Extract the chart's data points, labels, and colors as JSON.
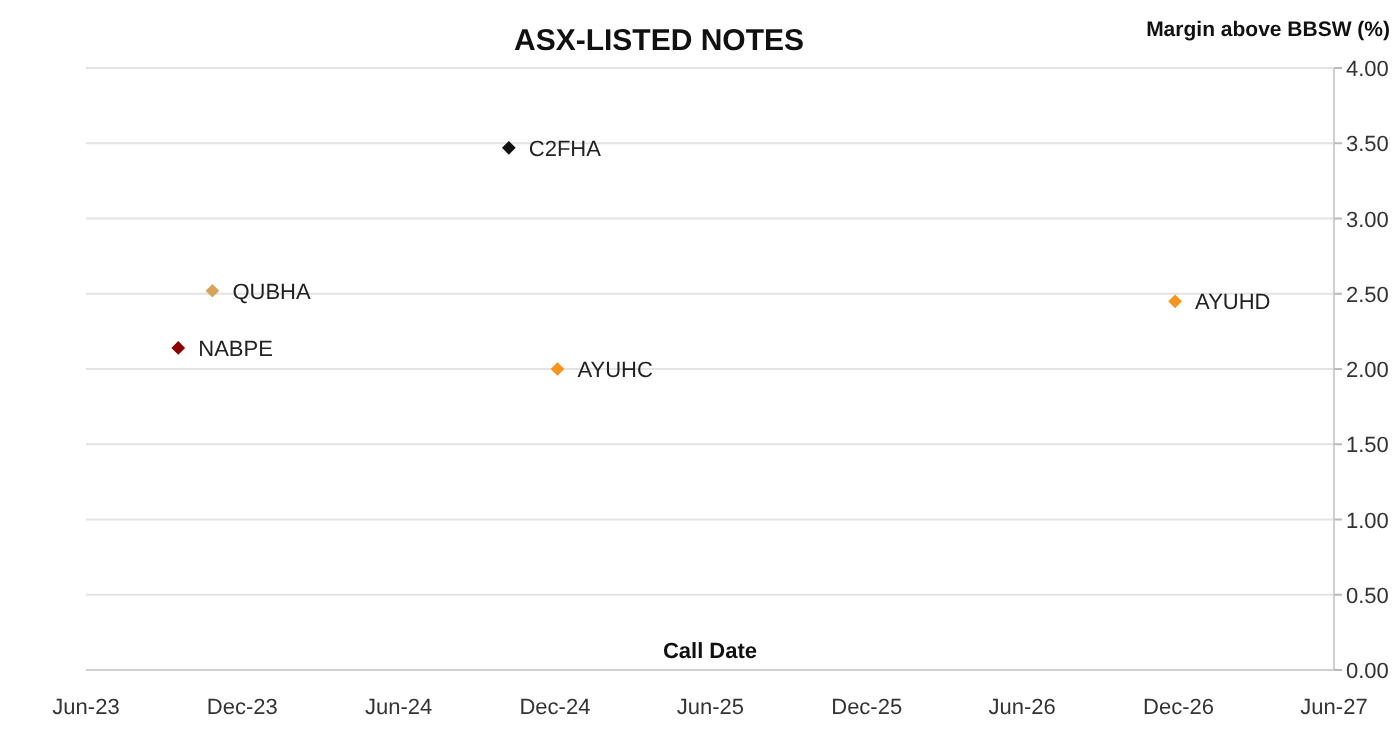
{
  "chart_data": {
    "type": "scatter",
    "title": "ASX-LISTED NOTES",
    "xlabel": "Call Date",
    "ylabel": "Margin above BBSW (%)",
    "marker": "diamond",
    "grid": "y",
    "series": [
      {
        "name": "QUBHA",
        "color": "#d4a55a",
        "x": [
          "2023-10-27"
        ],
        "values": [
          2.52
        ]
      },
      {
        "name": "NABPE",
        "color": "#8b0000",
        "x": [
          "2023-09-17"
        ],
        "values": [
          2.14
        ]
      },
      {
        "name": "C2FHA",
        "color": "#111111",
        "x": [
          "2024-10-08"
        ],
        "values": [
          3.47
        ]
      },
      {
        "name": "AYUHC",
        "color": "#f7941d",
        "x": [
          "2024-12-04"
        ],
        "values": [
          2.0
        ]
      },
      {
        "name": "AYUHD",
        "color": "#f7941d",
        "x": [
          "2026-11-27"
        ],
        "values": [
          2.45
        ]
      }
    ],
    "xlim": [
      "2023-06",
      "2027-06"
    ],
    "xticks": [
      {
        "value": "2023-06",
        "label": "Jun-23"
      },
      {
        "value": "2023-12",
        "label": "Dec-23"
      },
      {
        "value": "2024-06",
        "label": "Jun-24"
      },
      {
        "value": "2024-12",
        "label": "Dec-24"
      },
      {
        "value": "2025-06",
        "label": "Jun-25"
      },
      {
        "value": "2025-12",
        "label": "Dec-25"
      },
      {
        "value": "2026-06",
        "label": "Jun-26"
      },
      {
        "value": "2026-12",
        "label": "Dec-26"
      },
      {
        "value": "2027-06",
        "label": "Jun-27"
      }
    ],
    "ylim": [
      0,
      4
    ],
    "yticks": [
      {
        "value": 0,
        "label": "0.00"
      },
      {
        "value": 0.5,
        "label": "0.50"
      },
      {
        "value": 1,
        "label": "1.00"
      },
      {
        "value": 1.5,
        "label": "1.50"
      },
      {
        "value": 2,
        "label": "2.00"
      },
      {
        "value": 2.5,
        "label": "2.50"
      },
      {
        "value": 3,
        "label": "3.00"
      },
      {
        "value": 3.5,
        "label": "3.50"
      },
      {
        "value": 4,
        "label": "4.00"
      }
    ]
  }
}
